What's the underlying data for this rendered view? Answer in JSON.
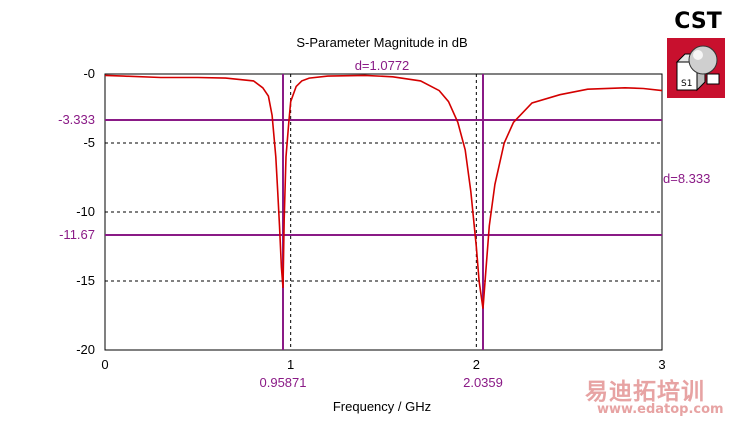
{
  "logo": {
    "text": "CST",
    "badge": "S1"
  },
  "watermark": {
    "title": "易迪拓培训",
    "url": "www.edatop.com"
  },
  "chart_data": {
    "type": "line",
    "title": "S-Parameter Magnitude in dB",
    "xlabel": "Frequency / GHz",
    "ylabel": "",
    "xlim": [
      0,
      3
    ],
    "ylim": [
      -20,
      0
    ],
    "x_ticks": [
      {
        "v": 0,
        "label": "0"
      },
      {
        "v": 1,
        "label": "1"
      },
      {
        "v": 2,
        "label": "2"
      },
      {
        "v": 3,
        "label": "3"
      }
    ],
    "y_ticks": [
      {
        "v": 0,
        "label": "-0"
      },
      {
        "v": -5,
        "label": "-5"
      },
      {
        "v": -10,
        "label": "-10"
      },
      {
        "v": -15,
        "label": "-15"
      },
      {
        "v": -20,
        "label": "-20"
      }
    ],
    "grid": "dashed gridlines at x=1, x=2 and y=-5, -10, -15",
    "colors": {
      "curve": "#d40000",
      "markers": "#8a1a86",
      "grid": "#000000"
    },
    "series": [
      {
        "x": [
          0,
          0.1,
          0.3,
          0.5,
          0.65,
          0.8,
          0.85,
          0.88,
          0.9,
          0.92,
          0.93,
          0.94,
          0.95,
          0.9587,
          0.965,
          0.975,
          0.99,
          1.0,
          1.03,
          1.06,
          1.1,
          1.2,
          1.4,
          1.55,
          1.7,
          1.8,
          1.85,
          1.9,
          1.94,
          1.97,
          2.0,
          2.015,
          2.0359,
          2.05,
          2.07,
          2.1,
          2.15,
          2.2,
          2.3,
          2.45,
          2.6,
          2.8,
          2.9,
          3.0
        ],
        "y": [
          -0.1,
          -0.15,
          -0.25,
          -0.25,
          -0.3,
          -0.5,
          -1.0,
          -1.6,
          -3.0,
          -6.0,
          -8.5,
          -11.0,
          -14.0,
          -15.5,
          -10.5,
          -6.0,
          -3.5,
          -2.0,
          -0.9,
          -0.5,
          -0.3,
          -0.15,
          -0.1,
          -0.2,
          -0.5,
          -1.2,
          -2.0,
          -3.5,
          -5.5,
          -8.5,
          -12.5,
          -15.0,
          -17.0,
          -14.5,
          -11.0,
          -8.0,
          -5.0,
          -3.5,
          -2.1,
          -1.5,
          -1.1,
          -1.0,
          -1.05,
          -1.2
        ]
      }
    ],
    "markers": {
      "horizontal": [
        {
          "y": -3.333,
          "label": "-3.333"
        },
        {
          "y": -11.67,
          "label": "-11.67"
        }
      ],
      "vertical": [
        {
          "x": 0.95871,
          "label": "0.95871"
        },
        {
          "x": 2.0359,
          "label": "2.0359"
        }
      ],
      "dx_label": "d=1.0772",
      "dy_label": "d=8.333"
    }
  }
}
